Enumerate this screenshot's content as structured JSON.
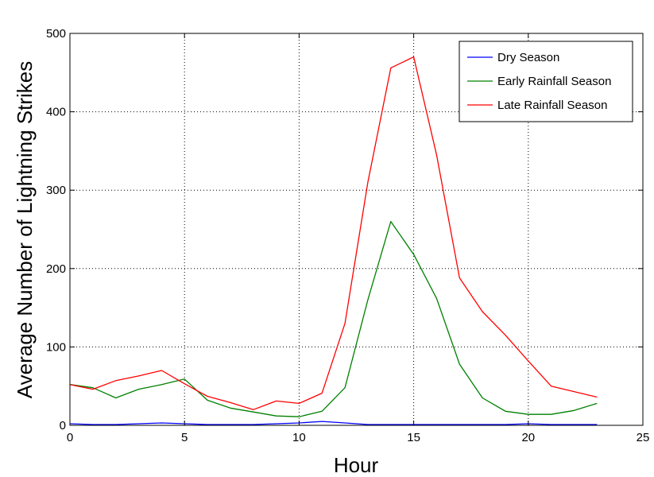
{
  "chart_data": {
    "type": "line",
    "title": "",
    "xlabel": "Hour",
    "ylabel": "Average Number of Lightning Strikes",
    "xlim": [
      0,
      25
    ],
    "ylim": [
      0,
      500
    ],
    "xticks": [
      0,
      5,
      10,
      15,
      20,
      25
    ],
    "yticks": [
      0,
      100,
      200,
      300,
      400,
      500
    ],
    "grid": true,
    "legend_position": "top-right",
    "x": [
      0,
      1,
      2,
      3,
      4,
      5,
      6,
      7,
      8,
      9,
      10,
      11,
      12,
      13,
      14,
      15,
      16,
      17,
      18,
      19,
      20,
      21,
      22,
      23
    ],
    "series": [
      {
        "name": "Dry Season",
        "color": "#0000ff",
        "values": [
          2,
          1,
          1,
          2,
          3,
          2,
          1,
          1,
          1,
          2,
          3,
          5,
          3,
          1,
          1,
          1,
          1,
          1,
          1,
          1,
          2,
          1,
          1,
          1
        ]
      },
      {
        "name": "Early Rainfall Season",
        "color": "#008000",
        "values": [
          52,
          48,
          35,
          46,
          52,
          59,
          32,
          22,
          17,
          12,
          11,
          18,
          48,
          160,
          260,
          218,
          162,
          78,
          35,
          18,
          14,
          14,
          19,
          28
        ]
      },
      {
        "name": "Late Rainfall Season",
        "color": "#ff0000",
        "values": [
          52,
          46,
          57,
          63,
          70,
          53,
          37,
          29,
          20,
          31,
          28,
          41,
          130,
          310,
          456,
          470,
          345,
          188,
          145,
          115,
          82,
          50,
          43,
          36
        ]
      }
    ]
  }
}
